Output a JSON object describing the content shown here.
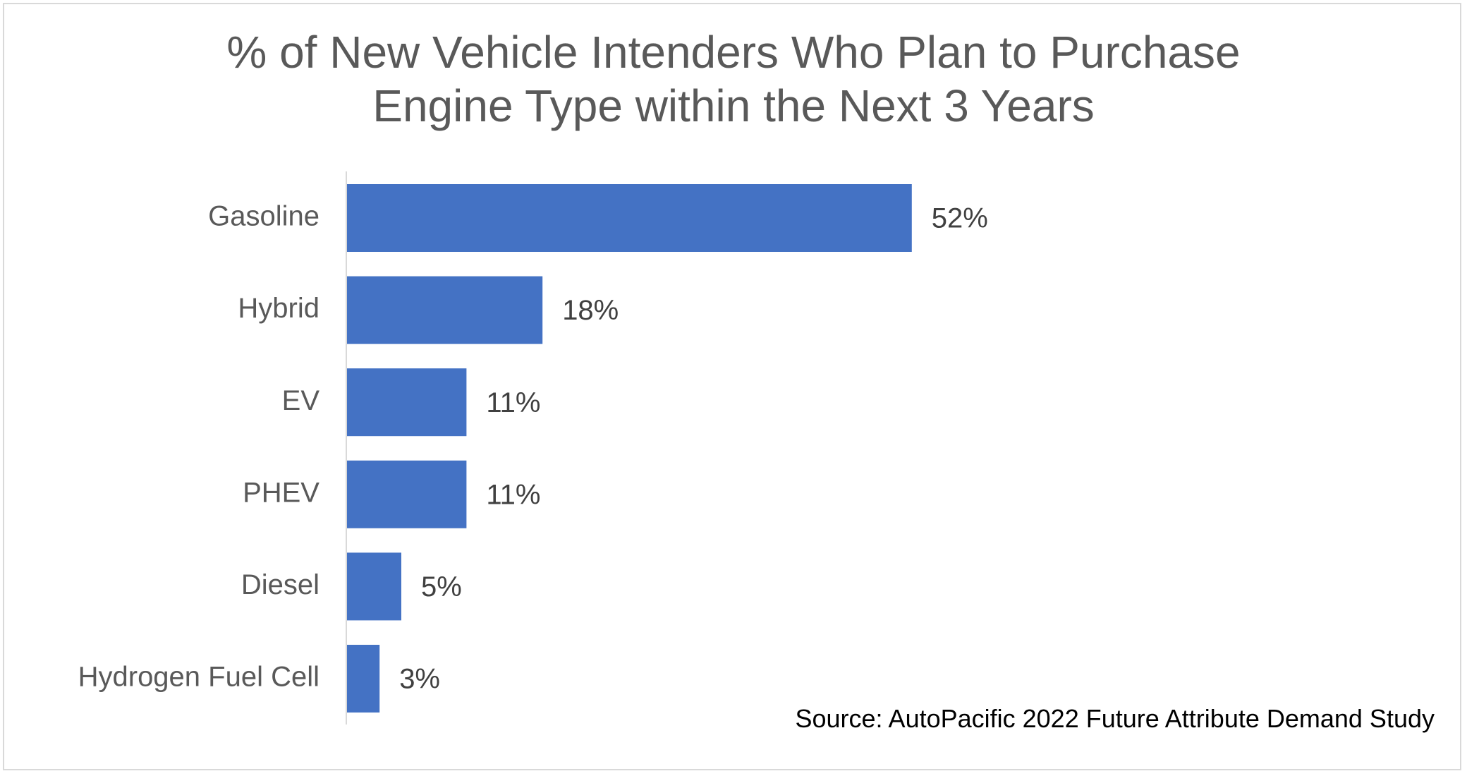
{
  "chart_data": {
    "type": "bar",
    "orientation": "horizontal",
    "title": "% of New Vehicle Intenders Who Plan to Purchase Engine Type within the Next 3 Years",
    "title_lines": [
      "% of New Vehicle Intenders Who Plan to Purchase",
      "Engine Type within the Next 3 Years"
    ],
    "categories": [
      "Gasoline",
      "Hybrid",
      "EV",
      "PHEV",
      "Diesel",
      "Hydrogen Fuel Cell"
    ],
    "values": [
      52,
      18,
      11,
      11,
      5,
      3
    ],
    "value_labels": [
      "52%",
      "18%",
      "11%",
      "11%",
      "5%",
      "3%"
    ],
    "xlabel": "",
    "ylabel": "",
    "unit": "%",
    "xlim": [
      0,
      100
    ],
    "grid": false,
    "legend": "none",
    "bar_color": "#4472C4",
    "source": "Source: AutoPacific 2022 Future Attribute Demand Study"
  }
}
